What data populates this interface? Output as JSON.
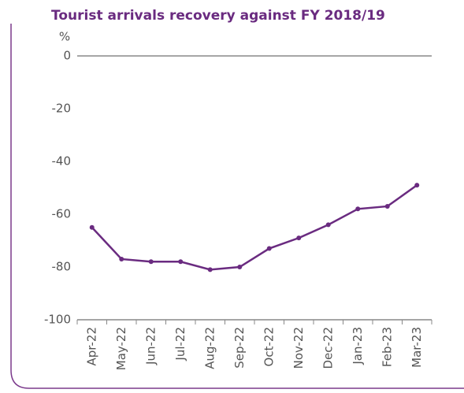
{
  "chart_data": {
    "type": "line",
    "title": "Tourist arrivals recovery against FY 2018/19",
    "y_label": "%",
    "categories": [
      "Apr-22",
      "May-22",
      "Jun-22",
      "Jul-22",
      "Aug-22",
      "Sep-22",
      "Oct-22",
      "Nov-22",
      "Dec-22",
      "Jan-23",
      "Feb-23",
      "Mar-23"
    ],
    "series": [
      {
        "name": "Tourist arrivals recovery",
        "color": "#6a2b80",
        "values": [
          -65,
          -77,
          -78,
          -78,
          -81,
          -80,
          -73,
          -69,
          -64,
          -58,
          -57,
          -49
        ]
      }
    ],
    "ylim": [
      -100,
      0
    ],
    "yticks": [
      0,
      -20,
      -40,
      -60,
      -80,
      -100
    ],
    "grid": false
  }
}
